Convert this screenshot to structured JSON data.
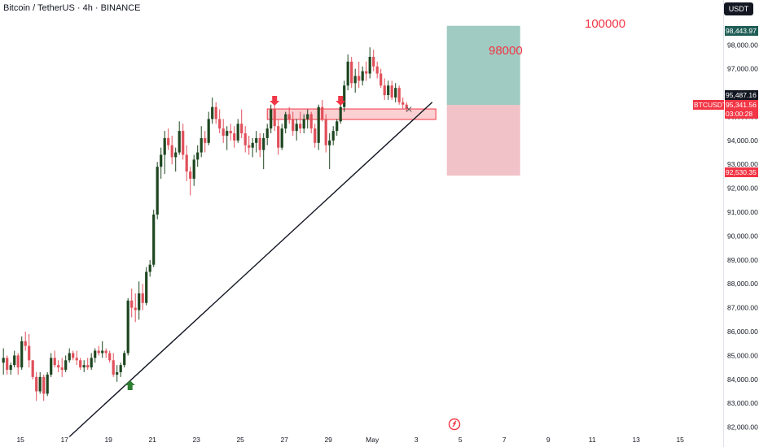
{
  "header": {
    "title": "Bitcoin / TetherUS · 4h · BINANCE"
  },
  "currency_button": "USDT",
  "symbol_badge": "BTCUSDT",
  "price_tags": {
    "high": "98,443.97",
    "tp_level": "95,487.16",
    "current": "95,341.56",
    "countdown": "03:00:28",
    "stop_level": "92,530.35"
  },
  "annotations": {
    "target_1": "100000",
    "target_2": "98000"
  },
  "colors": {
    "up": "#1e4620",
    "down": "#e0505a",
    "resistance": "#f23645",
    "profit_zone": "#5fa89a",
    "loss_zone": "#e89aa2",
    "trendline": "#131722",
    "buy_arrow": "#2e7d32",
    "sell_arrow": "#f23645"
  },
  "chart_data": {
    "type": "candlestick",
    "timeframe": "4h",
    "ylim": [
      81850,
      99200
    ],
    "ytick_labels": [
      "82,000.00",
      "83,000.00",
      "84,000.00",
      "85,000.00",
      "86,000.00",
      "87,000.00",
      "88,000.00",
      "89,000.00",
      "90,000.00",
      "91,000.00",
      "92,000.00",
      "93,000.00",
      "94,000.00",
      "95,000.00",
      "96,000.00",
      "97,000.00",
      "98,000.00"
    ],
    "ytick_values": [
      82000,
      83000,
      84000,
      85000,
      86000,
      87000,
      88000,
      89000,
      90000,
      91000,
      92000,
      93000,
      94000,
      95000,
      96000,
      97000,
      98000
    ],
    "xtick_labels": [
      "15",
      "17",
      "19",
      "21",
      "23",
      "25",
      "27",
      "29",
      "May",
      "3",
      "5",
      "7",
      "9",
      "11",
      "13",
      "15"
    ],
    "xtick_positions": [
      0,
      12,
      24,
      36,
      48,
      60,
      72,
      84,
      96,
      108,
      120,
      132,
      144,
      156,
      168,
      180
    ],
    "ohlc": [
      [
        84700,
        85300,
        84200,
        84900
      ],
      [
        84900,
        85000,
        84200,
        84400
      ],
      [
        84400,
        84700,
        84200,
        84600
      ],
      [
        84600,
        85200,
        84500,
        85000
      ],
      [
        85000,
        85100,
        84200,
        84500
      ],
      [
        84500,
        85800,
        84400,
        85600
      ],
      [
        85600,
        86000,
        85200,
        85400
      ],
      [
        85400,
        85900,
        84500,
        84800
      ],
      [
        84800,
        84800,
        84000,
        84100
      ],
      [
        84100,
        84300,
        83100,
        83500
      ],
      [
        83500,
        84300,
        83400,
        84100
      ],
      [
        84100,
        84200,
        83100,
        83400
      ],
      [
        83400,
        84300,
        83300,
        84200
      ],
      [
        84200,
        85100,
        84100,
        84900
      ],
      [
        84900,
        85200,
        84500,
        84600
      ],
      [
        84600,
        84800,
        84300,
        84500
      ],
      [
        84500,
        84900,
        84100,
        84400
      ],
      [
        84400,
        85000,
        84300,
        84800
      ],
      [
        84800,
        85300,
        84700,
        85100
      ],
      [
        85100,
        85200,
        84800,
        84900
      ],
      [
        84900,
        85200,
        84600,
        84800
      ],
      [
        84800,
        84900,
        84400,
        84500
      ],
      [
        84500,
        84800,
        84300,
        84600
      ],
      [
        84600,
        84900,
        84400,
        84500
      ],
      [
        84500,
        85100,
        84400,
        84900
      ],
      [
        84900,
        85300,
        84700,
        85200
      ],
      [
        85200,
        85400,
        85000,
        85100
      ],
      [
        85100,
        85600,
        84900,
        85200
      ],
      [
        85200,
        85300,
        84900,
        85100
      ],
      [
        85100,
        85200,
        84700,
        84800
      ],
      [
        84800,
        85100,
        84100,
        84200
      ],
      [
        84200,
        84600,
        83900,
        84300
      ],
      [
        84300,
        84700,
        84100,
        84600
      ],
      [
        84600,
        85200,
        84500,
        85100
      ],
      [
        85100,
        87400,
        85000,
        87300
      ],
      [
        87300,
        87800,
        86600,
        87000
      ],
      [
        87000,
        87600,
        86400,
        86900
      ],
      [
        86900,
        88100,
        86500,
        87600
      ],
      [
        87600,
        88000,
        86900,
        87200
      ],
      [
        87200,
        88700,
        87100,
        88500
      ],
      [
        88500,
        89000,
        88300,
        88800
      ],
      [
        88800,
        91100,
        88700,
        90900
      ],
      [
        90900,
        93100,
        90700,
        92900
      ],
      [
        92900,
        93700,
        92400,
        93400
      ],
      [
        93400,
        94400,
        92600,
        94100
      ],
      [
        94100,
        94500,
        93600,
        93800
      ],
      [
        93800,
        94200,
        93000,
        93300
      ],
      [
        93300,
        93700,
        92700,
        93500
      ],
      [
        93500,
        94800,
        93400,
        94400
      ],
      [
        94400,
        94700,
        93200,
        93400
      ],
      [
        93400,
        93800,
        92300,
        92700
      ],
      [
        92700,
        92900,
        91700,
        92400
      ],
      [
        92400,
        93400,
        92100,
        93200
      ],
      [
        93200,
        93800,
        92900,
        93500
      ],
      [
        93500,
        94600,
        93300,
        94100
      ],
      [
        94100,
        94400,
        93500,
        93900
      ],
      [
        93900,
        95200,
        93800,
        94900
      ],
      [
        94900,
        95800,
        94700,
        95400
      ],
      [
        95400,
        95600,
        94700,
        94900
      ],
      [
        94900,
        95300,
        94300,
        94500
      ],
      [
        94500,
        94900,
        93900,
        94200
      ],
      [
        94200,
        94600,
        93600,
        94400
      ],
      [
        94400,
        94700,
        94000,
        94300
      ],
      [
        94300,
        94600,
        93700,
        94000
      ],
      [
        94000,
        94900,
        93900,
        94700
      ],
      [
        94700,
        95300,
        94100,
        94300
      ],
      [
        94300,
        94600,
        93500,
        93800
      ],
      [
        93800,
        94200,
        93400,
        93700
      ],
      [
        93700,
        94100,
        93300,
        93900
      ],
      [
        93900,
        94400,
        93500,
        94100
      ],
      [
        94100,
        94300,
        93300,
        93600
      ],
      [
        93600,
        94300,
        92800,
        94100
      ],
      [
        94100,
        94700,
        93800,
        94500
      ],
      [
        94500,
        95500,
        94300,
        95300
      ],
      [
        95300,
        95500,
        94400,
        94600
      ],
      [
        94600,
        94900,
        93400,
        93700
      ],
      [
        93700,
        94700,
        93600,
        94500
      ],
      [
        94500,
        95200,
        94300,
        95100
      ],
      [
        95100,
        95400,
        94700,
        94900
      ],
      [
        94900,
        95200,
        94200,
        94400
      ],
      [
        94400,
        94900,
        94000,
        94700
      ],
      [
        94700,
        95200,
        94300,
        94500
      ],
      [
        94500,
        95100,
        94300,
        94900
      ],
      [
        94900,
        95300,
        94500,
        95100
      ],
      [
        95100,
        95200,
        94300,
        94500
      ],
      [
        94500,
        94700,
        93700,
        93900
      ],
      [
        93900,
        95500,
        93600,
        95400
      ],
      [
        95400,
        95700,
        94800,
        94900
      ],
      [
        94900,
        95100,
        93500,
        93800
      ],
      [
        93800,
        94300,
        92800,
        94000
      ],
      [
        94000,
        94600,
        93800,
        94400
      ],
      [
        94400,
        94900,
        94200,
        94800
      ],
      [
        94800,
        95600,
        94700,
        95400
      ],
      [
        95400,
        96500,
        95200,
        96300
      ],
      [
        96300,
        97600,
        96100,
        97300
      ],
      [
        97300,
        97500,
        96200,
        96400
      ],
      [
        96400,
        97000,
        96000,
        96700
      ],
      [
        96700,
        97300,
        96200,
        96500
      ],
      [
        96500,
        97100,
        96300,
        96900
      ],
      [
        96900,
        97300,
        96500,
        96800
      ],
      [
        96800,
        97900,
        96600,
        97500
      ],
      [
        97500,
        97800,
        96900,
        97100
      ],
      [
        97100,
        97300,
        96600,
        96800
      ],
      [
        96800,
        97000,
        96200,
        96300
      ],
      [
        96300,
        96600,
        95700,
        95900
      ],
      [
        95900,
        96500,
        95700,
        96300
      ],
      [
        96300,
        96500,
        95700,
        95800
      ],
      [
        95800,
        96400,
        95600,
        96200
      ],
      [
        96200,
        96300,
        95500,
        95600
      ],
      [
        95600,
        95800,
        95300,
        95500
      ],
      [
        95500,
        95600,
        95200,
        95341.56
      ]
    ],
    "last_price": 95341.56,
    "session_high": 98443.97,
    "resistance_zone": [
      94880,
      95320
    ],
    "resistance_span": [
      72,
      118
    ],
    "long_position": {
      "entry": 95487.16,
      "target": 98800,
      "stop": 92530.35,
      "span": [
        121,
        141
      ]
    },
    "target_line": 100000,
    "target_line_span": [
      115,
      183
    ],
    "trendline": [
      [
        18,
        81600
      ],
      [
        117,
        95600
      ]
    ],
    "sell_arrows": [
      74,
      92
    ],
    "buy_arrow": 35,
    "annotation_values": [
      100000,
      98000
    ]
  }
}
